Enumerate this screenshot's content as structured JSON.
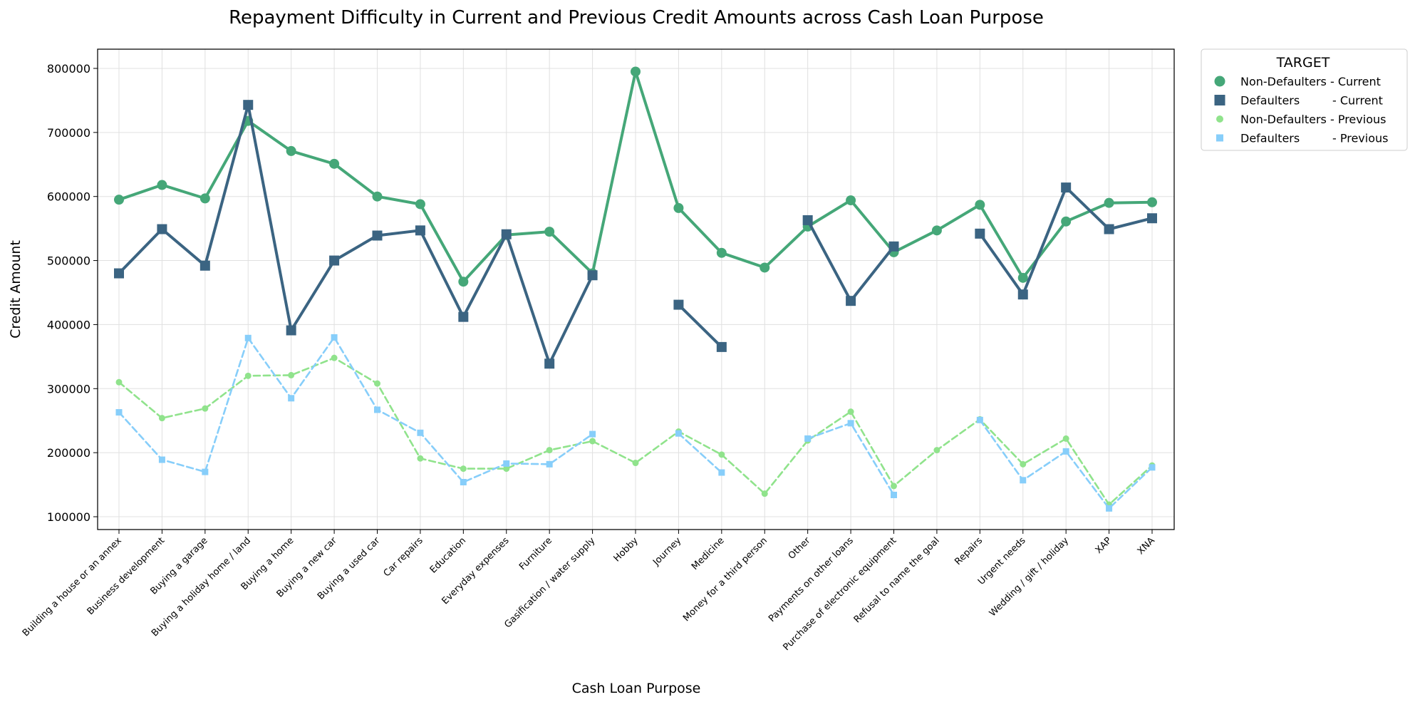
{
  "chart_data": {
    "type": "line",
    "title": "Repayment Difficulty in Current and Previous Credit Amounts across Cash Loan Purpose",
    "xlabel": "Cash Loan Purpose",
    "ylabel": "Credit Amount",
    "ylim": [
      80000,
      830000
    ],
    "yticks": [
      100000,
      200000,
      300000,
      400000,
      500000,
      600000,
      700000,
      800000
    ],
    "ytick_labels": [
      "100000",
      "200000",
      "300000",
      "400000",
      "500000",
      "600000",
      "700000",
      "800000"
    ],
    "grid": true,
    "legend_title": "TARGET",
    "legend_position": "outside-top-right",
    "categories": [
      "Building a house or an annex",
      "Business development",
      "Buying a garage",
      "Buying a holiday home / land",
      "Buying a home",
      "Buying a new car",
      "Buying a used car",
      "Car repairs",
      "Education",
      "Everyday expenses",
      "Furniture",
      "Gasification / water supply",
      "Hobby",
      "Journey",
      "Medicine",
      "Money for a third person",
      "Other",
      "Payments on other loans",
      "Purchase of electronic equipment",
      "Refusal to name the goal",
      "Repairs",
      "Urgent needs",
      "Wedding / gift / holiday",
      "XAP",
      "XNA"
    ],
    "series": [
      {
        "name": "Non-Defaulters - Current",
        "color": "#45a778",
        "marker": "circle",
        "dash": "solid",
        "values": [
          595000,
          618000,
          597000,
          718000,
          671000,
          651000,
          600000,
          588000,
          467000,
          540000,
          545000,
          480000,
          795000,
          582000,
          512000,
          489000,
          553000,
          594000,
          513000,
          547000,
          587000,
          473000,
          561000,
          590000,
          591000
        ]
      },
      {
        "name": "Defaulters         - Current",
        "color": "#3b6482",
        "marker": "square",
        "dash": "solid",
        "values": [
          480000,
          549000,
          492000,
          743000,
          391000,
          500000,
          539000,
          547000,
          412000,
          541000,
          339000,
          477000,
          null,
          431000,
          365000,
          null,
          563000,
          437000,
          522000,
          null,
          542000,
          447000,
          614000,
          549000,
          566000
        ]
      },
      {
        "name": "Non-Defaulters - Previous",
        "color": "#90e38c",
        "marker": "circle",
        "dash": "dashed",
        "values": [
          310000,
          254000,
          269000,
          320000,
          321000,
          348000,
          308000,
          191000,
          175000,
          175000,
          204000,
          218000,
          184000,
          233000,
          197000,
          136000,
          219000,
          264000,
          148000,
          204000,
          252000,
          182000,
          222000,
          119000,
          180000
        ]
      },
      {
        "name": "Defaulters         - Previous",
        "color": "#87cefa",
        "marker": "square",
        "dash": "dashed",
        "values": [
          263000,
          189000,
          170000,
          379000,
          285000,
          380000,
          267000,
          231000,
          154000,
          183000,
          182000,
          229000,
          null,
          230000,
          169000,
          null,
          222000,
          246000,
          134000,
          null,
          251000,
          157000,
          202000,
          113000,
          177000
        ]
      }
    ]
  }
}
